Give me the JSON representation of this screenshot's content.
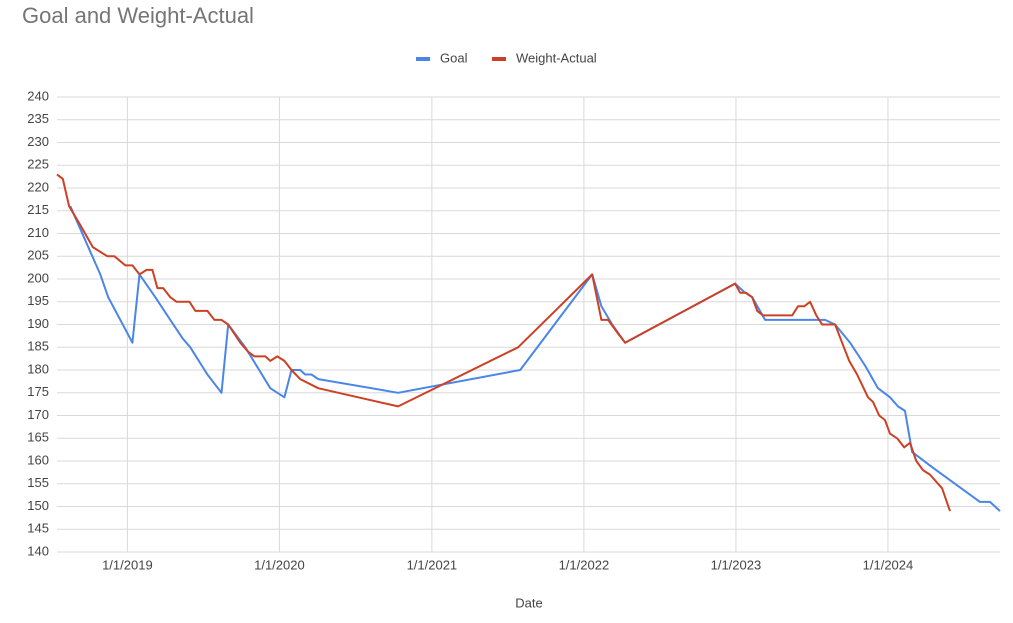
{
  "chart_data": {
    "type": "line",
    "title": "Goal and Weight-Actual",
    "x_label": "Date",
    "xlim": [
      "2018-07-16",
      "2024-09-26"
    ],
    "xticks": [
      {
        "value": "2019-01-01",
        "label": "1/1/2019"
      },
      {
        "value": "2020-01-01",
        "label": "1/1/2020"
      },
      {
        "value": "2021-01-01",
        "label": "1/1/2021"
      },
      {
        "value": "2022-01-01",
        "label": "1/1/2022"
      },
      {
        "value": "2023-01-01",
        "label": "1/1/2023"
      },
      {
        "value": "2024-01-01",
        "label": "1/1/2024"
      }
    ],
    "ylim": [
      140,
      240
    ],
    "yticks": [
      140,
      145,
      150,
      155,
      160,
      165,
      170,
      175,
      180,
      185,
      190,
      195,
      200,
      205,
      210,
      215,
      220,
      225,
      230,
      235,
      240
    ],
    "grid": true,
    "legend": "top",
    "series": [
      {
        "name": "Goal",
        "color": "#4a86e8",
        "x": [
          "2018-08-17",
          "2018-10-04",
          "2018-10-28",
          "2018-11-16",
          "2018-12-15",
          "2019-01-13",
          "2019-01-30",
          "2019-03-09",
          "2019-04-14",
          "2019-05-13",
          "2019-06-01",
          "2019-07-12",
          "2019-08-15",
          "2019-08-31",
          "2019-10-11",
          "2019-12-10",
          "2020-01-13",
          "2020-01-30",
          "2020-02-20",
          "2020-03-03",
          "2020-03-18",
          "2020-04-03",
          "2020-10-12",
          "2021-08-01",
          "2022-01-21",
          "2022-02-12",
          "2022-03-10",
          "2022-04-10",
          "2022-12-30",
          "2023-01-23",
          "2023-02-09",
          "2023-03-12",
          "2023-08-03",
          "2023-08-27",
          "2023-10-02",
          "2023-11-07",
          "2023-12-08",
          "2024-01-06",
          "2024-01-25",
          "2024-02-11",
          "2024-02-28",
          "2024-04-11",
          "2024-06-10",
          "2024-08-09",
          "2024-09-02",
          "2024-09-26"
        ],
        "values": [
          216,
          206,
          201,
          196,
          191,
          186,
          201,
          196,
          191,
          187,
          185,
          179,
          175,
          190,
          185,
          176,
          174,
          180,
          180,
          179,
          179,
          178,
          175,
          180,
          201,
          194,
          190,
          186,
          199,
          197,
          196,
          191,
          191,
          190,
          186,
          181,
          176,
          174,
          172,
          171,
          162,
          159,
          155,
          151,
          151,
          149
        ]
      },
      {
        "name": "Weight-Actual",
        "color": "#cc4125",
        "x": [
          "2018-07-16",
          "2018-07-30",
          "2018-08-14",
          "2018-09-09",
          "2018-10-10",
          "2018-11-14",
          "2018-12-01",
          "2018-12-27",
          "2019-01-13",
          "2019-01-30",
          "2019-02-16",
          "2019-03-02",
          "2019-03-14",
          "2019-03-28",
          "2019-04-14",
          "2019-04-29",
          "2019-05-30",
          "2019-06-13",
          "2019-07-12",
          "2019-07-29",
          "2019-08-15",
          "2019-08-31",
          "2019-09-29",
          "2019-10-18",
          "2019-11-02",
          "2019-11-28",
          "2019-12-10",
          "2019-12-27",
          "2020-01-13",
          "2020-01-30",
          "2020-02-20",
          "2020-04-03",
          "2020-10-12",
          "2021-07-27",
          "2022-01-21",
          "2022-02-12",
          "2022-02-28",
          "2022-03-24",
          "2022-04-10",
          "2022-12-30",
          "2023-01-11",
          "2023-01-25",
          "2023-02-09",
          "2023-02-21",
          "2023-03-07",
          "2023-05-16",
          "2023-05-30",
          "2023-06-14",
          "2023-06-28",
          "2023-07-13",
          "2023-07-27",
          "2023-08-27",
          "2023-09-13",
          "2023-09-30",
          "2023-10-19",
          "2023-11-14",
          "2023-11-26",
          "2023-12-11",
          "2023-12-25",
          "2024-01-06",
          "2024-01-23",
          "2024-02-09",
          "2024-02-23",
          "2024-03-09",
          "2024-03-25",
          "2024-04-11",
          "2024-05-10",
          "2024-05-29"
        ],
        "values": [
          223,
          222,
          216,
          212,
          207,
          205,
          205,
          203,
          203,
          201,
          202,
          202,
          198,
          198,
          196,
          195,
          195,
          193,
          193,
          191,
          191,
          190,
          186,
          184,
          183,
          183,
          182,
          183,
          182,
          180,
          178,
          176,
          172,
          185,
          201,
          191,
          191,
          188,
          186,
          199,
          197,
          197,
          196,
          193,
          192,
          192,
          194,
          194,
          195,
          192,
          190,
          190,
          186,
          182,
          179,
          174,
          173,
          170,
          169,
          166,
          165,
          163,
          164,
          160,
          158,
          157,
          154,
          149
        ]
      }
    ]
  }
}
